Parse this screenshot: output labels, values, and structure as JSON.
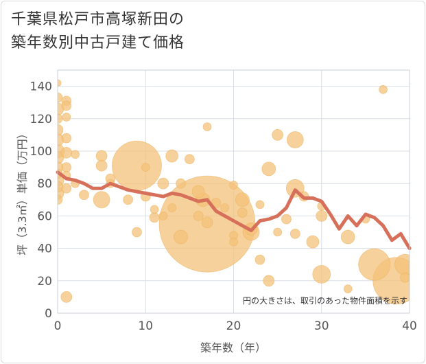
{
  "title": {
    "line1": "千葉県松戸市高塚新田の",
    "line2": "築年数別中古戸建て価格"
  },
  "chart_data": {
    "type": "scatter",
    "xlabel": "築年数（年）",
    "ylabel": "坪（3.3㎡）単価（万円）",
    "xlim": [
      0,
      40
    ],
    "ylim": [
      0,
      150
    ],
    "xticks": [
      0,
      10,
      20,
      30,
      40
    ],
    "yticks": [
      0,
      20,
      40,
      60,
      80,
      100,
      120,
      140
    ],
    "grid": true,
    "annotation": "円の大きさは、取引のあった物件面積を示す",
    "colors": {
      "bubble": "#f4c27a",
      "bubble_stroke": "#eab25c",
      "line": "#d6705a",
      "grid": "#d8dee6",
      "plot_border": "#c8d0da"
    },
    "bubbles": [
      {
        "x": 0,
        "y": 142,
        "s": 5
      },
      {
        "x": 0,
        "y": 133,
        "s": 7
      },
      {
        "x": 0,
        "y": 126,
        "s": 9
      },
      {
        "x": 0,
        "y": 120,
        "s": 7
      },
      {
        "x": 0,
        "y": 113,
        "s": 8
      },
      {
        "x": 0,
        "y": 107,
        "s": 9
      },
      {
        "x": 0,
        "y": 100,
        "s": 10
      },
      {
        "x": 0,
        "y": 96,
        "s": 9
      },
      {
        "x": 0,
        "y": 90,
        "s": 8
      },
      {
        "x": 0,
        "y": 86,
        "s": 7
      },
      {
        "x": 0,
        "y": 82,
        "s": 9
      },
      {
        "x": 0,
        "y": 78,
        "s": 8
      },
      {
        "x": 0,
        "y": 74,
        "s": 9
      },
      {
        "x": 0,
        "y": 70,
        "s": 7
      },
      {
        "x": 1,
        "y": 131,
        "s": 7
      },
      {
        "x": 1,
        "y": 128,
        "s": 7
      },
      {
        "x": 1,
        "y": 121,
        "s": 6
      },
      {
        "x": 1,
        "y": 108,
        "s": 7
      },
      {
        "x": 1,
        "y": 99,
        "s": 8
      },
      {
        "x": 1,
        "y": 90,
        "s": 7
      },
      {
        "x": 1,
        "y": 85,
        "s": 6
      },
      {
        "x": 1,
        "y": 77,
        "s": 7
      },
      {
        "x": 1,
        "y": 10,
        "s": 8
      },
      {
        "x": 2,
        "y": 98,
        "s": 6
      },
      {
        "x": 2,
        "y": 80,
        "s": 6
      },
      {
        "x": 3,
        "y": 73,
        "s": 7
      },
      {
        "x": 5,
        "y": 97,
        "s": 8
      },
      {
        "x": 5,
        "y": 91,
        "s": 8
      },
      {
        "x": 5,
        "y": 70,
        "s": 12
      },
      {
        "x": 6,
        "y": 83,
        "s": 7
      },
      {
        "x": 6,
        "y": 80,
        "s": 6
      },
      {
        "x": 9,
        "y": 91,
        "s": 36
      },
      {
        "x": 9,
        "y": 50,
        "s": 7
      },
      {
        "x": 8,
        "y": 70,
        "s": 7
      },
      {
        "x": 10,
        "y": 72,
        "s": 7
      },
      {
        "x": 10,
        "y": 90,
        "s": 6
      },
      {
        "x": 11,
        "y": 64,
        "s": 6
      },
      {
        "x": 11,
        "y": 59,
        "s": 7
      },
      {
        "x": 12,
        "y": 80,
        "s": 8
      },
      {
        "x": 12,
        "y": 60,
        "s": 6
      },
      {
        "x": 13,
        "y": 97,
        "s": 9
      },
      {
        "x": 13,
        "y": 65,
        "s": 6
      },
      {
        "x": 14,
        "y": 80,
        "s": 7
      },
      {
        "x": 14,
        "y": 47,
        "s": 10
      },
      {
        "x": 15,
        "y": 95,
        "s": 7
      },
      {
        "x": 16,
        "y": 75,
        "s": 9
      },
      {
        "x": 16,
        "y": 60,
        "s": 7
      },
      {
        "x": 16.5,
        "y": 70,
        "s": 10
      },
      {
        "x": 17,
        "y": 115,
        "s": 6
      },
      {
        "x": 17,
        "y": 56,
        "s": 8
      },
      {
        "x": 17,
        "y": 55,
        "s": 70
      },
      {
        "x": 18,
        "y": 68,
        "s": 7
      },
      {
        "x": 19,
        "y": 65,
        "s": 6
      },
      {
        "x": 20,
        "y": 79,
        "s": 6
      },
      {
        "x": 20,
        "y": 48,
        "s": 6
      },
      {
        "x": 20,
        "y": 44,
        "s": 6
      },
      {
        "x": 21,
        "y": 70,
        "s": 10
      },
      {
        "x": 21,
        "y": 62,
        "s": 7
      },
      {
        "x": 22,
        "y": 52,
        "s": 9
      },
      {
        "x": 22,
        "y": 50,
        "s": 12
      },
      {
        "x": 23,
        "y": 67,
        "s": 6
      },
      {
        "x": 23,
        "y": 33,
        "s": 7
      },
      {
        "x": 24,
        "y": 89,
        "s": 10
      },
      {
        "x": 24,
        "y": 20,
        "s": 8
      },
      {
        "x": 25,
        "y": 110,
        "s": 8
      },
      {
        "x": 25,
        "y": 50,
        "s": 6
      },
      {
        "x": 26,
        "y": 58,
        "s": 7
      },
      {
        "x": 27,
        "y": 107,
        "s": 12
      },
      {
        "x": 27,
        "y": 77,
        "s": 13
      },
      {
        "x": 27,
        "y": 49,
        "s": 7
      },
      {
        "x": 28,
        "y": 72,
        "s": 7
      },
      {
        "x": 29,
        "y": 44,
        "s": 9
      },
      {
        "x": 30,
        "y": 66,
        "s": 6
      },
      {
        "x": 30,
        "y": 60,
        "s": 8
      },
      {
        "x": 30,
        "y": 24,
        "s": 13
      },
      {
        "x": 33,
        "y": 47,
        "s": 10
      },
      {
        "x": 33,
        "y": 15,
        "s": 6
      },
      {
        "x": 35,
        "y": 58,
        "s": 6
      },
      {
        "x": 37,
        "y": 138,
        "s": 6
      },
      {
        "x": 36,
        "y": 30,
        "s": 23
      },
      {
        "x": 38.5,
        "y": 20,
        "s": 34
      },
      {
        "x": 39.5,
        "y": 30,
        "s": 15
      },
      {
        "x": 39.5,
        "y": 22,
        "s": 7
      }
    ],
    "trend": [
      {
        "x": 0,
        "y": 87
      },
      {
        "x": 1,
        "y": 83
      },
      {
        "x": 2,
        "y": 82
      },
      {
        "x": 3,
        "y": 80
      },
      {
        "x": 4,
        "y": 77
      },
      {
        "x": 5,
        "y": 77
      },
      {
        "x": 6,
        "y": 80
      },
      {
        "x": 7,
        "y": 78
      },
      {
        "x": 8,
        "y": 76
      },
      {
        "x": 9,
        "y": 75
      },
      {
        "x": 10,
        "y": 74
      },
      {
        "x": 11,
        "y": 73
      },
      {
        "x": 12,
        "y": 72
      },
      {
        "x": 13,
        "y": 74
      },
      {
        "x": 14,
        "y": 73
      },
      {
        "x": 15,
        "y": 71
      },
      {
        "x": 16,
        "y": 69
      },
      {
        "x": 17,
        "y": 70
      },
      {
        "x": 18,
        "y": 63
      },
      {
        "x": 19,
        "y": 60
      },
      {
        "x": 20,
        "y": 57
      },
      {
        "x": 21,
        "y": 54
      },
      {
        "x": 22,
        "y": 51
      },
      {
        "x": 23,
        "y": 57
      },
      {
        "x": 24,
        "y": 58
      },
      {
        "x": 25,
        "y": 60
      },
      {
        "x": 26,
        "y": 65
      },
      {
        "x": 27,
        "y": 76
      },
      {
        "x": 28,
        "y": 71
      },
      {
        "x": 29,
        "y": 71
      },
      {
        "x": 30,
        "y": 69
      },
      {
        "x": 31,
        "y": 61
      },
      {
        "x": 32,
        "y": 52
      },
      {
        "x": 33,
        "y": 60
      },
      {
        "x": 34,
        "y": 54
      },
      {
        "x": 35,
        "y": 61
      },
      {
        "x": 36,
        "y": 59
      },
      {
        "x": 37,
        "y": 54
      },
      {
        "x": 38,
        "y": 45
      },
      {
        "x": 39,
        "y": 49
      },
      {
        "x": 40,
        "y": 40
      }
    ]
  }
}
